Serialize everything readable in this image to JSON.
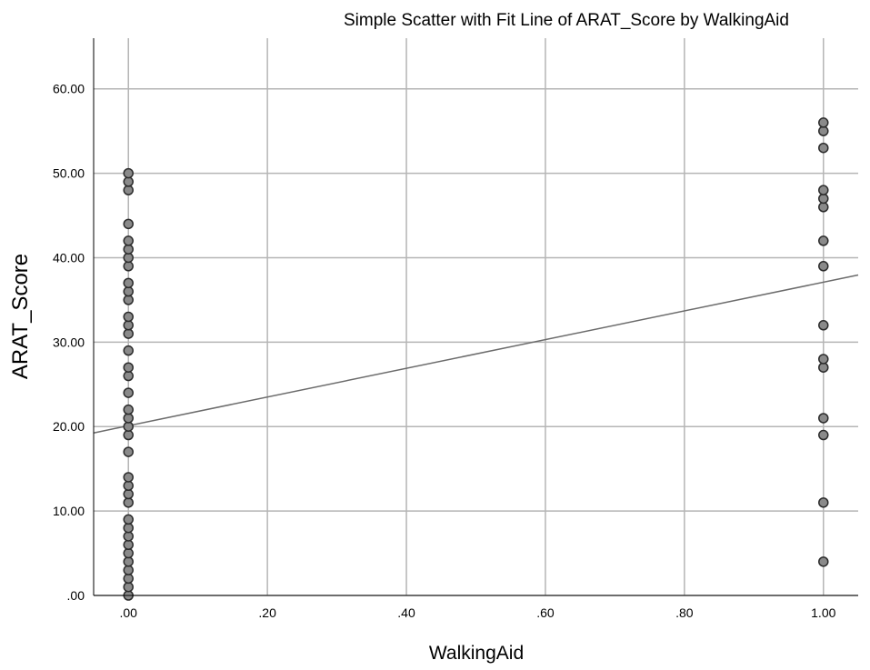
{
  "chart_data": {
    "type": "scatter",
    "title": "Simple Scatter with Fit Line of ARAT_Score by WalkingAid",
    "xlabel": "WalkingAid",
    "ylabel": "ARAT_Score",
    "xlim": [
      -0.05,
      1.05
    ],
    "ylim": [
      0,
      66
    ],
    "xticks": [
      0,
      0.2,
      0.4,
      0.6,
      0.8,
      1.0
    ],
    "xtick_labels": [
      ".00",
      ".20",
      ".40",
      ".60",
      ".80",
      "1.00"
    ],
    "yticks": [
      0,
      10,
      20,
      30,
      40,
      50,
      60
    ],
    "ytick_labels": [
      ".00",
      "10.00",
      "20.00",
      "30.00",
      "40.00",
      "50.00",
      "60.00"
    ],
    "grid": true,
    "series": [
      {
        "points": [
          [
            0,
            0
          ],
          [
            0,
            1
          ],
          [
            0,
            2
          ],
          [
            0,
            3
          ],
          [
            0,
            4
          ],
          [
            0,
            5
          ],
          [
            0,
            6
          ],
          [
            0,
            7
          ],
          [
            0,
            8
          ],
          [
            0,
            9
          ],
          [
            0,
            11
          ],
          [
            0,
            12
          ],
          [
            0,
            13
          ],
          [
            0,
            14
          ],
          [
            0,
            17
          ],
          [
            0,
            19
          ],
          [
            0,
            20
          ],
          [
            0,
            21
          ],
          [
            0,
            22
          ],
          [
            0,
            24
          ],
          [
            0,
            26
          ],
          [
            0,
            27
          ],
          [
            0,
            29
          ],
          [
            0,
            31
          ],
          [
            0,
            32
          ],
          [
            0,
            33
          ],
          [
            0,
            35
          ],
          [
            0,
            36
          ],
          [
            0,
            37
          ],
          [
            0,
            39
          ],
          [
            0,
            40
          ],
          [
            0,
            41
          ],
          [
            0,
            42
          ],
          [
            0,
            44
          ],
          [
            0,
            48
          ],
          [
            0,
            49
          ],
          [
            0,
            50
          ],
          [
            1,
            4
          ],
          [
            1,
            11
          ],
          [
            1,
            19
          ],
          [
            1,
            21
          ],
          [
            1,
            27
          ],
          [
            1,
            28
          ],
          [
            1,
            32
          ],
          [
            1,
            39
          ],
          [
            1,
            42
          ],
          [
            1,
            46
          ],
          [
            1,
            47
          ],
          [
            1,
            48
          ],
          [
            1,
            53
          ],
          [
            1,
            55
          ],
          [
            1,
            56
          ]
        ]
      }
    ],
    "fit_line": {
      "intercept": 20.1,
      "slope": 17.0
    },
    "colors": {
      "marker_fill": "#8a8a8a",
      "marker_stroke": "#2b2b2b",
      "fit_line": "#6b6b6b",
      "grid": "#b5b5b5"
    }
  }
}
